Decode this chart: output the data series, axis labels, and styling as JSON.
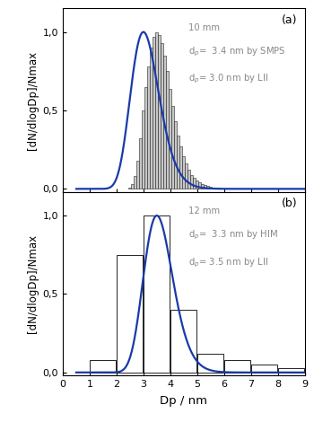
{
  "panel_a": {
    "label": "(a)",
    "annotation_line1": "10 mm",
    "annotation_line2": "d$_p$=  3.4 nm by SMPS",
    "annotation_line3": "d$_p$= 3.0 nm by LII",
    "lii_mode": 3.0,
    "lii_sigma_log": 0.175,
    "bar_centers": [
      2.5,
      2.6,
      2.7,
      2.8,
      2.9,
      3.0,
      3.1,
      3.2,
      3.3,
      3.4,
      3.5,
      3.6,
      3.7,
      3.8,
      3.9,
      4.0,
      4.1,
      4.2,
      4.3,
      4.4,
      4.5,
      4.6,
      4.7,
      4.8,
      4.9,
      5.0,
      5.1,
      5.2,
      5.3,
      5.4,
      5.5,
      5.6,
      5.7,
      5.8,
      5.9,
      6.0,
      6.1,
      6.2
    ],
    "bar_heights": [
      0.01,
      0.03,
      0.08,
      0.18,
      0.32,
      0.5,
      0.65,
      0.78,
      0.9,
      0.97,
      1.0,
      0.98,
      0.93,
      0.85,
      0.75,
      0.64,
      0.53,
      0.43,
      0.34,
      0.27,
      0.21,
      0.16,
      0.12,
      0.09,
      0.07,
      0.055,
      0.04,
      0.03,
      0.025,
      0.02,
      0.015,
      0.01,
      0.008,
      0.006,
      0.004,
      0.003,
      0.002,
      0.001
    ],
    "bar_width": 0.092,
    "ylim": [
      -0.02,
      1.15
    ],
    "yticks": [
      0.0,
      0.5,
      1.0
    ],
    "yticklabels": [
      "0,0",
      "0,5",
      "1,0"
    ]
  },
  "panel_b": {
    "label": "(b)",
    "annotation_line1": "12 mm",
    "annotation_line2": "d$_p$=  3.3 nm by HIM",
    "annotation_line3": "d$_p$= 3.5 nm by LII",
    "lii_mode": 3.5,
    "lii_sigma_log": 0.155,
    "bar_edges": [
      1.0,
      2.0,
      3.0,
      4.0,
      5.0,
      6.0,
      7.0,
      8.0,
      9.0
    ],
    "bar_heights": [
      0.08,
      0.75,
      1.0,
      0.4,
      0.12,
      0.08,
      0.05,
      0.03
    ],
    "ylim": [
      -0.02,
      1.15
    ],
    "yticks": [
      0.0,
      0.5,
      1.0
    ],
    "yticklabels": [
      "0,0",
      "0,5",
      "1,0"
    ]
  },
  "xlim": [
    0,
    9
  ],
  "xticks": [
    0,
    1,
    2,
    3,
    4,
    5,
    6,
    7,
    8,
    9
  ],
  "xlabel": "Dp / nm",
  "ylabel": "[dN/dlogDp]/Nmax",
  "bar_a_facecolor": "#c8c8c8",
  "bar_a_edgecolor": "#222222",
  "bar_b_facecolor": "#ffffff",
  "bar_b_edgecolor": "#222222",
  "line_color": "#1a3aaa",
  "line_width": 1.6,
  "annotation_fontsize": 7.2,
  "axis_fontsize": 8.5,
  "tick_fontsize": 8,
  "label_fontsize": 9,
  "annotation_color": "#888888"
}
